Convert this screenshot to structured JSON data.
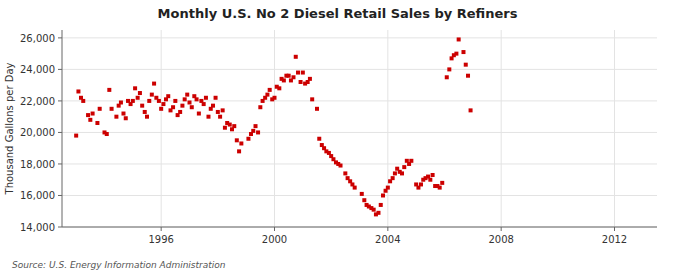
{
  "chart_data": {
    "type": "scatter",
    "title": "Monthly U.S. No 2 Diesel Retail Sales by Refiners",
    "y_label": "Thousand Gallons per Day",
    "annotations": [
      "Source: U.S. Energy Information Administration"
    ],
    "color": "#CC0000",
    "marker": "square",
    "grid": true,
    "xlim": [
      1992.5,
      2013.5
    ],
    "xticks": [
      1996,
      2000,
      2004,
      2008,
      2012
    ],
    "ylim": [
      14000,
      26500
    ],
    "yticks": [
      {
        "value": 14000,
        "label": "14,000"
      },
      {
        "value": 16000,
        "label": "16,000"
      },
      {
        "value": 18000,
        "label": "18,000"
      },
      {
        "value": 20000,
        "label": "20,000"
      },
      {
        "value": 22000,
        "label": "22,000"
      },
      {
        "value": 24000,
        "label": "24,000"
      },
      {
        "value": 26000,
        "label": "26,000"
      }
    ],
    "x": [
      1993.0,
      1993.08,
      1993.17,
      1993.25,
      1993.42,
      1993.5,
      1993.58,
      1993.75,
      1993.83,
      1994.0,
      1994.08,
      1994.17,
      1994.25,
      1994.42,
      1994.5,
      1994.58,
      1994.67,
      1994.75,
      1994.83,
      1994.92,
      1995.0,
      1995.08,
      1995.17,
      1995.25,
      1995.33,
      1995.42,
      1995.5,
      1995.58,
      1995.67,
      1995.75,
      1995.83,
      1995.92,
      1996.0,
      1996.08,
      1996.17,
      1996.25,
      1996.33,
      1996.42,
      1996.5,
      1996.58,
      1996.67,
      1996.75,
      1996.83,
      1996.92,
      1997.0,
      1997.08,
      1997.17,
      1997.25,
      1997.33,
      1997.42,
      1997.5,
      1997.58,
      1997.67,
      1997.75,
      1997.83,
      1997.92,
      1998.0,
      1998.08,
      1998.17,
      1998.25,
      1998.33,
      1998.42,
      1998.5,
      1998.58,
      1998.67,
      1998.75,
      1998.83,
      1999.08,
      1999.17,
      1999.25,
      1999.33,
      1999.42,
      1999.5,
      1999.58,
      1999.67,
      1999.75,
      1999.83,
      1999.92,
      2000.0,
      2000.08,
      2000.17,
      2000.25,
      2000.33,
      2000.42,
      2000.5,
      2000.58,
      2000.67,
      2000.75,
      2000.83,
      2000.92,
      2001.0,
      2001.08,
      2001.17,
      2001.25,
      2001.33,
      2001.5,
      2001.58,
      2001.67,
      2001.75,
      2001.83,
      2001.92,
      2002.0,
      2002.08,
      2002.17,
      2002.25,
      2002.33,
      2002.5,
      2002.58,
      2002.67,
      2002.75,
      2002.83,
      2003.08,
      2003.17,
      2003.25,
      2003.33,
      2003.42,
      2003.5,
      2003.58,
      2003.67,
      2003.75,
      2003.83,
      2003.92,
      2004.0,
      2004.08,
      2004.17,
      2004.25,
      2004.33,
      2004.42,
      2004.5,
      2004.58,
      2004.67,
      2004.75,
      2004.83,
      2005.0,
      2005.08,
      2005.17,
      2005.25,
      2005.33,
      2005.42,
      2005.5,
      2005.58,
      2005.67,
      2005.75,
      2005.83,
      2005.92,
      2006.08,
      2006.17,
      2006.25,
      2006.33,
      2006.42,
      2006.5,
      2006.67,
      2006.75,
      2006.83,
      2006.92
    ],
    "values": [
      19800,
      22600,
      22200,
      22000,
      21100,
      20800,
      21200,
      20600,
      21500,
      20000,
      19900,
      22700,
      21500,
      21000,
      21700,
      21900,
      21200,
      20900,
      22000,
      21800,
      22000,
      22800,
      22200,
      22500,
      21700,
      21300,
      21000,
      22000,
      22400,
      23100,
      22200,
      22000,
      21500,
      21800,
      22100,
      22300,
      21400,
      21600,
      22000,
      21100,
      21300,
      21700,
      22100,
      22400,
      21900,
      21600,
      22300,
      22100,
      21200,
      22000,
      21800,
      22200,
      21000,
      21500,
      21700,
      22200,
      21300,
      21000,
      21400,
      20300,
      20600,
      20500,
      20200,
      20400,
      19500,
      18800,
      19300,
      19600,
      19900,
      20100,
      20400,
      20000,
      21600,
      22000,
      22200,
      22400,
      22700,
      22100,
      22200,
      22900,
      22800,
      23400,
      23300,
      23600,
      23600,
      23300,
      23500,
      24800,
      23800,
      23200,
      23800,
      23100,
      23200,
      23400,
      22100,
      21500,
      19600,
      19200,
      19000,
      18800,
      18700,
      18500,
      18300,
      18100,
      18000,
      17900,
      17400,
      17100,
      16900,
      16700,
      16500,
      16100,
      15700,
      15400,
      15300,
      15200,
      15100,
      14800,
      14900,
      15400,
      16000,
      16300,
      16500,
      16900,
      17100,
      17400,
      17700,
      17500,
      17400,
      17800,
      18200,
      18000,
      18200,
      16700,
      16500,
      16700,
      17000,
      17100,
      17200,
      17000,
      17300,
      16600,
      16600,
      16500,
      16800,
      23500,
      24000,
      24700,
      24900,
      25000,
      25900,
      25100,
      24300,
      23600,
      21400
    ]
  }
}
